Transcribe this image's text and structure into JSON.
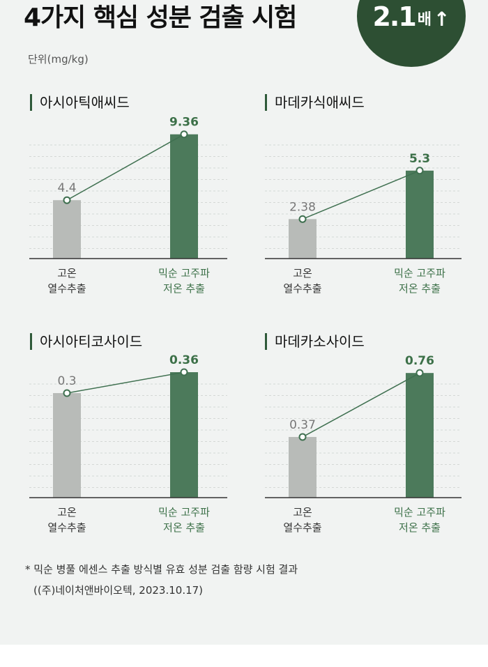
{
  "header": {
    "title": "4가지 핵심 성분 검출 시험",
    "badge_number": "2.1",
    "badge_unit": "배",
    "badge_arrow": "↑",
    "unit_label": "단위(mg/kg)"
  },
  "colors": {
    "grey_bar": "#b8bbb8",
    "green_bar": "#4c7a5b",
    "line": "#3f7050",
    "grey_text": "#777777",
    "green_text": "#3c7048",
    "badge": "#2d4f33"
  },
  "chart_data": [
    {
      "type": "bar",
      "title": "아시아틱애씨드",
      "categories": [
        "고온\n열수추출",
        "믹순 고주파\n저온 추출"
      ],
      "values": [
        4.4,
        9.36
      ],
      "value_labels": [
        "4.4",
        "9.36"
      ],
      "ylim": [
        0,
        10.5
      ]
    },
    {
      "type": "bar",
      "title": "마데카식애씨드",
      "categories": [
        "고온\n열수추출",
        "믹순 고주파\n저온 추출"
      ],
      "values": [
        2.38,
        5.3
      ],
      "value_labels": [
        "2.38",
        "5.3"
      ],
      "ylim": [
        0,
        8.4
      ]
    },
    {
      "type": "bar",
      "title": "아시아티코사이드",
      "categories": [
        "고온\n열수추출",
        "믹순 고주파\n저온 추출"
      ],
      "values": [
        0.3,
        0.36
      ],
      "value_labels": [
        "0.3",
        "0.36"
      ],
      "ylim": [
        0,
        0.4
      ]
    },
    {
      "type": "bar",
      "title": "마데카소사이드",
      "categories": [
        "고온\n열수추출",
        "믹순 고주파\n저온 추출"
      ],
      "values": [
        0.37,
        0.76
      ],
      "value_labels": [
        "0.37",
        "0.76"
      ],
      "ylim": [
        0,
        0.85
      ]
    }
  ],
  "footnote": {
    "line1": "* 믹순 병풀 에센스 추출 방식별 유효 성분 검출 함량 시험 결과",
    "line2": "((주)네이처앤바이오텍, 2023.10.17)"
  }
}
